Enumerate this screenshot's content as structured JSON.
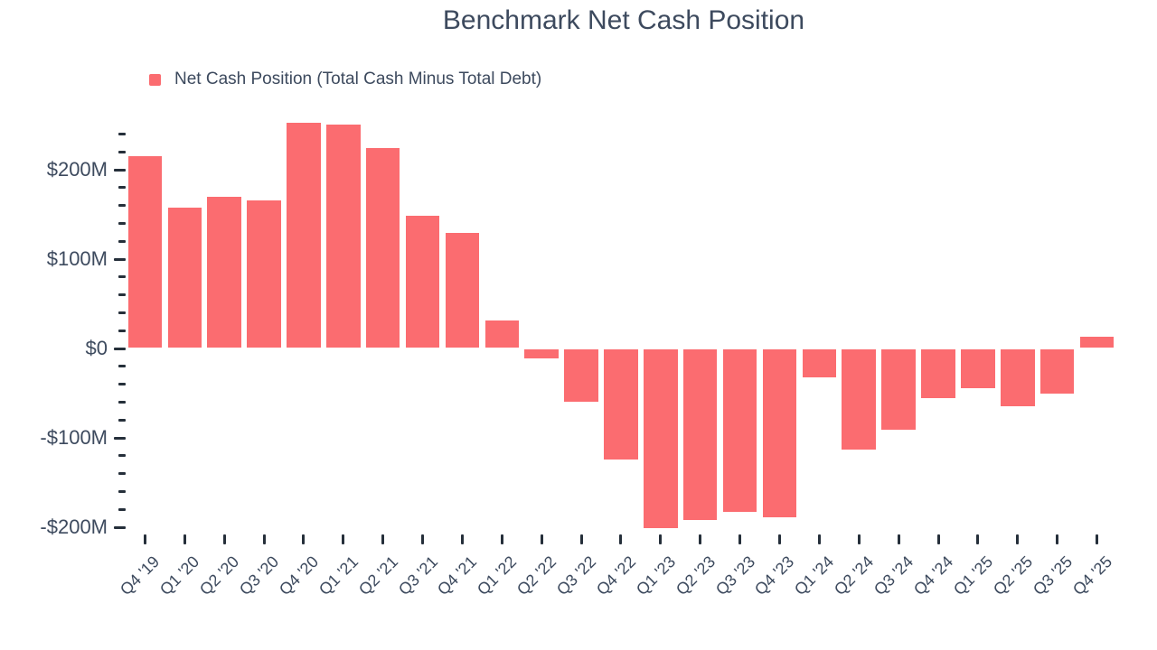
{
  "title": "Benchmark Net Cash Position",
  "legend": {
    "label": "Net Cash Position (Total Cash Minus Total Debt)",
    "marker_color": "#fb6c70"
  },
  "colors": {
    "bar": "#fb6c70",
    "text": "#3d4a5e",
    "tick": "#252f3a",
    "background": "#ffffff"
  },
  "chart_data": {
    "type": "bar",
    "title": "Benchmark Net Cash Position",
    "unit": "USD millions",
    "grid": false,
    "legend_position": "top-left",
    "categories": [
      "Q4 '19",
      "Q1 '20",
      "Q2 '20",
      "Q3 '20",
      "Q4 '20",
      "Q1 '21",
      "Q2 '21",
      "Q3 '21",
      "Q4 '21",
      "Q1 '22",
      "Q2 '22",
      "Q3 '22",
      "Q4 '22",
      "Q1 '23",
      "Q2 '23",
      "Q3 '23",
      "Q4 '23",
      "Q1 '24",
      "Q2 '24",
      "Q3 '24",
      "Q4 '24",
      "Q1 '25",
      "Q2 '25",
      "Q3 '25",
      "Q4 '25"
    ],
    "series": [
      {
        "name": "Net Cash Position (Total Cash Minus Total Debt)",
        "values": [
          215,
          158,
          170,
          166,
          253,
          251,
          224,
          148,
          129,
          31,
          -11,
          -59,
          -124,
          -201,
          -191,
          -182,
          -188,
          -32,
          -113,
          -90,
          -55,
          -44,
          -64,
          -50,
          13
        ]
      }
    ],
    "xlabel": "",
    "ylabel": "",
    "ylim": [
      -210,
      255
    ],
    "y_axis": {
      "major_tick_values": [
        200,
        100,
        0,
        -100,
        -200
      ],
      "major_tick_labels": [
        "$200M",
        "$100M",
        "$0",
        "-$100M",
        "-$200M"
      ],
      "minor_tick_step": 20,
      "minor_tick_min": -200,
      "minor_tick_max": 240
    }
  }
}
